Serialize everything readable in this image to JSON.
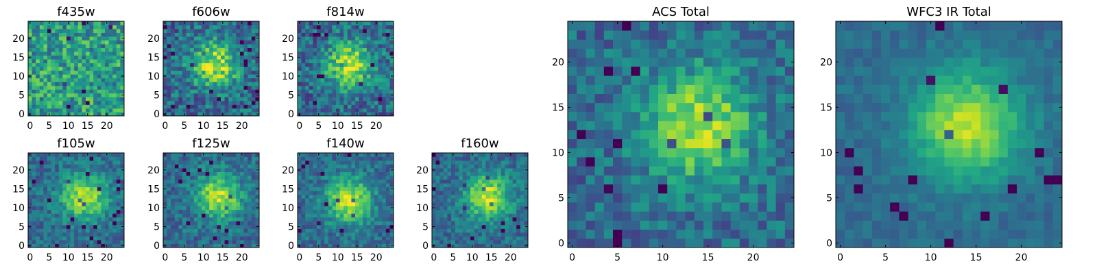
{
  "chart_data": [
    {
      "id": "f435w",
      "type": "heatmap",
      "title": "f435w",
      "xticks": [
        "0",
        "5",
        "10",
        "15",
        "20"
      ],
      "yticks": [
        "0",
        "5",
        "10",
        "15",
        "20"
      ],
      "xlim": [
        -0.5,
        24.5
      ],
      "ylim": [
        -0.5,
        24.5
      ],
      "source_grid": [
        25,
        25
      ],
      "peak": [
        null,
        null
      ],
      "noise": 0.5,
      "seed": 11
    },
    {
      "id": "f606w",
      "type": "heatmap",
      "title": "f606w",
      "xticks": [
        "0",
        "5",
        "10",
        "15",
        "20"
      ],
      "yticks": [
        "0",
        "5",
        "10",
        "15",
        "20"
      ],
      "xlim": [
        -0.5,
        24.5
      ],
      "ylim": [
        -0.5,
        24.5
      ],
      "source_grid": [
        25,
        25
      ],
      "peak": [
        13,
        13
      ],
      "noise": 0.42,
      "seed": 22
    },
    {
      "id": "f814w",
      "type": "heatmap",
      "title": "f814w",
      "xticks": [
        "0",
        "5",
        "10",
        "15",
        "20"
      ],
      "yticks": [
        "0",
        "5",
        "10",
        "15",
        "20"
      ],
      "xlim": [
        -0.5,
        24.5
      ],
      "ylim": [
        -0.5,
        24.5
      ],
      "source_grid": [
        25,
        25
      ],
      "peak": [
        13,
        13
      ],
      "noise": 0.42,
      "seed": 33
    },
    {
      "id": "f105w",
      "type": "heatmap",
      "title": "f105w",
      "xticks": [
        "0",
        "5",
        "10",
        "15",
        "20"
      ],
      "yticks": [
        "0",
        "5",
        "10",
        "15",
        "20"
      ],
      "xlim": [
        -0.5,
        24.5
      ],
      "ylim": [
        -0.5,
        24.5
      ],
      "source_grid": [
        25,
        25
      ],
      "peak": [
        14,
        13
      ],
      "noise": 0.3,
      "seed": 44
    },
    {
      "id": "f125w",
      "type": "heatmap",
      "title": "f125w",
      "xticks": [
        "0",
        "5",
        "10",
        "15",
        "20"
      ],
      "yticks": [
        "0",
        "5",
        "10",
        "15",
        "20"
      ],
      "xlim": [
        -0.5,
        24.5
      ],
      "ylim": [
        -0.5,
        24.5
      ],
      "source_grid": [
        25,
        25
      ],
      "peak": [
        14,
        13
      ],
      "noise": 0.32,
      "seed": 55
    },
    {
      "id": "f140w",
      "type": "heatmap",
      "title": "f140w",
      "xticks": [
        "0",
        "5",
        "10",
        "15",
        "20"
      ],
      "yticks": [
        "0",
        "5",
        "10",
        "15",
        "20"
      ],
      "xlim": [
        -0.5,
        24.5
      ],
      "ylim": [
        -0.5,
        24.5
      ],
      "source_grid": [
        25,
        25
      ],
      "peak": [
        13,
        12
      ],
      "noise": 0.3,
      "seed": 66
    },
    {
      "id": "f160w",
      "type": "heatmap",
      "title": "f160w",
      "xticks": [
        "0",
        "5",
        "10",
        "15",
        "20"
      ],
      "yticks": [
        "0",
        "5",
        "10",
        "15",
        "20"
      ],
      "xlim": [
        -0.5,
        24.5
      ],
      "ylim": [
        -0.5,
        24.5
      ],
      "source_grid": [
        25,
        25
      ],
      "peak": [
        14,
        13
      ],
      "noise": 0.3,
      "seed": 77
    },
    {
      "id": "acs_total",
      "type": "heatmap",
      "title": "ACS Total",
      "xticks": [
        "0",
        "5",
        "10",
        "15",
        "20"
      ],
      "yticks": [
        "0",
        "5",
        "10",
        "15",
        "20"
      ],
      "xlim": [
        -0.5,
        24.5
      ],
      "ylim": [
        -0.5,
        24.5
      ],
      "source_grid": [
        25,
        25
      ],
      "peak": [
        14,
        13
      ],
      "noise": 0.32,
      "seed": 88
    },
    {
      "id": "wfc3_total",
      "type": "heatmap",
      "title": "WFC3 IR Total",
      "xticks": [
        "0",
        "5",
        "10",
        "15",
        "20"
      ],
      "yticks": [
        "0",
        "5",
        "10",
        "15",
        "20"
      ],
      "xlim": [
        -0.5,
        24.5
      ],
      "ylim": [
        -0.5,
        24.5
      ],
      "source_grid": [
        25,
        25
      ],
      "peak": [
        14,
        13
      ],
      "noise": 0.14,
      "seed": 99
    }
  ],
  "colormap": "viridis",
  "colors": {
    "low": "#440154",
    "mid": "#21918c",
    "high": "#fde725"
  }
}
